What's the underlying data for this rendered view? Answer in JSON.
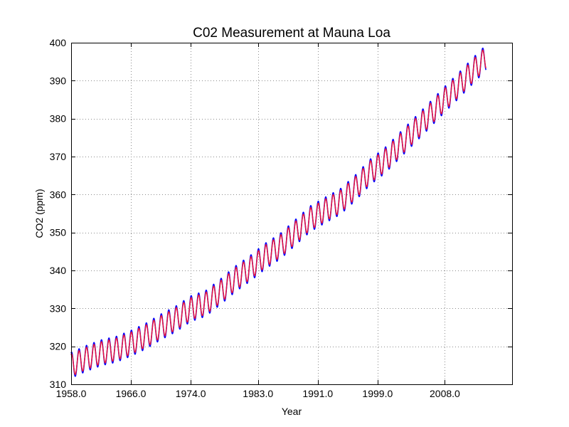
{
  "chart_data": {
    "type": "line",
    "title": "C02 Measurement at Mauna Loa",
    "xlabel": "Year",
    "ylabel": "CO2 (ppm)",
    "xlim": [
      1958.0,
      2017.0
    ],
    "ylim": [
      310,
      400
    ],
    "xticks": [
      1958.0,
      1966.0,
      1974.0,
      1983.0,
      1991.0,
      1999.0,
      2008.0
    ],
    "xtick_labels": [
      "1958.0",
      "1966.0",
      "1974.0",
      "1983.0",
      "1991.0",
      "1999.0",
      "2008.0"
    ],
    "yticks": [
      310,
      320,
      330,
      340,
      350,
      360,
      370,
      380,
      390,
      400
    ],
    "ytick_labels": [
      "310",
      "320",
      "330",
      "340",
      "350",
      "360",
      "370",
      "380",
      "390",
      "400"
    ],
    "grid": true,
    "legend": false,
    "x": [
      1958.0,
      1960.0,
      1962.0,
      1964.0,
      1966.0,
      1968.0,
      1970.0,
      1972.0,
      1974.0,
      1976.0,
      1978.0,
      1980.0,
      1982.0,
      1984.0,
      1986.0,
      1988.0,
      1990.0,
      1992.0,
      1994.0,
      1996.0,
      1998.0,
      2000.0,
      2002.0,
      2004.0,
      2006.0,
      2008.0,
      2010.0,
      2012.0,
      2013.5
    ],
    "series": [
      {
        "color": "#0000ff",
        "seasonal_amplitude_ppm": 3.4,
        "trend": [
          315.0,
          316.8,
          318.3,
          319.2,
          320.8,
          322.7,
          325.1,
          327.2,
          329.9,
          331.3,
          334.4,
          337.8,
          340.6,
          343.8,
          346.4,
          350.0,
          353.6,
          355.9,
          358.1,
          361.7,
          365.9,
          369.0,
          373.0,
          377.0,
          381.0,
          385.1,
          389.0,
          393.1,
          396.0
        ]
      },
      {
        "color": "#e8143c",
        "seasonal_amplitude_ppm": 2.9,
        "trend": [
          315.0,
          316.8,
          318.3,
          319.2,
          320.8,
          322.7,
          325.1,
          327.2,
          329.9,
          331.3,
          334.4,
          337.8,
          340.6,
          343.8,
          346.4,
          350.0,
          353.6,
          355.9,
          358.1,
          361.7,
          365.9,
          369.0,
          373.0,
          377.0,
          381.0,
          385.1,
          389.0,
          393.1,
          396.0
        ]
      }
    ]
  }
}
